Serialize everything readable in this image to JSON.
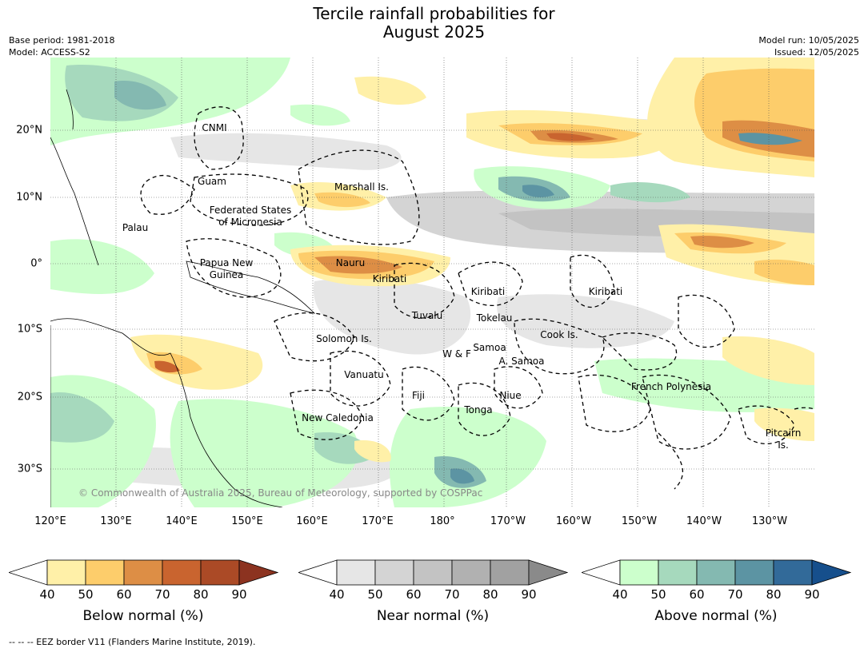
{
  "title_line1": "Tercile rainfall probabilities for",
  "title_line2": "August 2025",
  "meta_left": [
    "Base period: 1981-2018",
    "Model: ACCESS-S2"
  ],
  "meta_right": [
    "Model run: 10/05/2025",
    "Issued: 12/05/2025"
  ],
  "copyright": "© Commonwealth of Australia 2025, Bureau of Meteorology, supported by COSPPac",
  "lon_ticks": [
    "120°E",
    "130°E",
    "140°E",
    "150°E",
    "160°E",
    "170°E",
    "180°",
    "170°W",
    "160°W",
    "150°W",
    "140°W",
    "130°W"
  ],
  "lat_ticks": [
    "20°N",
    "10°N",
    "0°",
    "10°S",
    "20°S",
    "30°S"
  ],
  "regions": [
    "CNMI",
    "Guam",
    "Marshall Is.",
    "Federated States",
    "of Micronesia",
    "Palau",
    "Papua New",
    "Guinea",
    "Nauru",
    "Kiribati",
    "Kiribati",
    "Kiribati",
    "Tuvalu",
    "Tokelau",
    "Cook Is.",
    "Solomon Is.",
    "Samoa",
    "W & F",
    "A. Samoa",
    "Vanuatu",
    "Fiji",
    "Niue",
    "Tonga",
    "New Caledonia",
    "French Polynesia",
    "Pitcairn",
    "Is."
  ],
  "colorbars": [
    {
      "label": "Below normal (%)",
      "ticks": [
        "40",
        "50",
        "60",
        "70",
        "80",
        "90"
      ],
      "colors": [
        "#ffffff",
        "#fff0a8",
        "#fdcd6b",
        "#dd8e45",
        "#c9642f",
        "#ab4a26",
        "#8c3320"
      ]
    },
    {
      "label": "Near normal (%)",
      "ticks": [
        "40",
        "50",
        "60",
        "70",
        "80",
        "90"
      ],
      "colors": [
        "#ffffff",
        "#e6e6e6",
        "#d4d4d4",
        "#c3c3c3",
        "#b1b1b1",
        "#a1a1a1",
        "#8a8a8a"
      ]
    },
    {
      "label": "Above normal (%)",
      "ticks": [
        "40",
        "50",
        "60",
        "70",
        "80",
        "90"
      ],
      "colors": [
        "#ffffff",
        "#ccffcc",
        "#a6d9bd",
        "#84b9b1",
        "#5c94a3",
        "#326a99",
        "#164f8c"
      ]
    }
  ],
  "footnote": "--  --  -- EEZ border V11 (Flanders Marine Institute, 2019)."
}
